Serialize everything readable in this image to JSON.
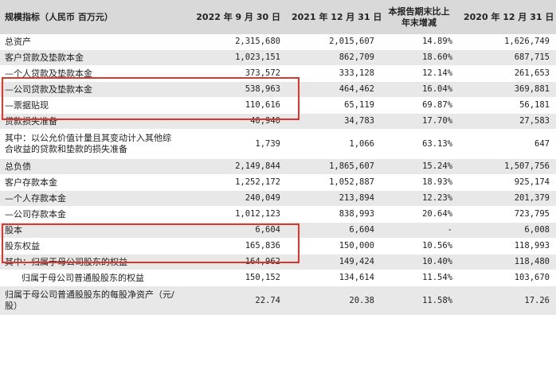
{
  "table": {
    "headers": {
      "indicator": "规模指标（人民币  百万元）",
      "col1": "2022 年 9 月 30 日",
      "col2": "2021 年 12 月 31 日",
      "col3": "本报告期末比上年末增减",
      "col4": "2020 年 12 月 31 日"
    },
    "rows": [
      {
        "label": "总资产",
        "v1": "2,315,680",
        "v2": "2,015,607",
        "v3": "14.89%",
        "v4": "1,626,749"
      },
      {
        "label": "客户贷款及垫款本金",
        "v1": "1,023,151",
        "v2": "862,709",
        "v3": "18.60%",
        "v4": "687,715"
      },
      {
        "label": "—个人贷款及垫款本金",
        "v1": "373,572",
        "v2": "333,128",
        "v3": "12.14%",
        "v4": "261,653"
      },
      {
        "label": "—公司贷款及垫款本金",
        "v1": "538,963",
        "v2": "464,462",
        "v3": "16.04%",
        "v4": "369,881"
      },
      {
        "label": "—票据贴现",
        "v1": "110,616",
        "v2": "65,119",
        "v3": "69.87%",
        "v4": "56,181"
      },
      {
        "label": "贷款损失准备",
        "v1": "40,940",
        "v2": "34,783",
        "v3": "17.70%",
        "v4": "27,583"
      },
      {
        "label": "其中：以公允价值计量且其变动计入其他综合收益的贷款和垫款的损失准备",
        "v1": "1,739",
        "v2": "1,066",
        "v3": "63.13%",
        "v4": "647"
      },
      {
        "label": "总负债",
        "v1": "2,149,844",
        "v2": "1,865,607",
        "v3": "15.24%",
        "v4": "1,507,756"
      },
      {
        "label": "客户存款本金",
        "v1": "1,252,172",
        "v2": "1,052,887",
        "v3": "18.93%",
        "v4": "925,174"
      },
      {
        "label": "—个人存款本金",
        "v1": "240,049",
        "v2": "213,894",
        "v3": "12.23%",
        "v4": "201,379"
      },
      {
        "label": "—公司存款本金",
        "v1": "1,012,123",
        "v2": "838,993",
        "v3": "20.64%",
        "v4": "723,795"
      },
      {
        "label": "股本",
        "v1": "6,604",
        "v2": "6,604",
        "v3": "-",
        "v4": "6,008"
      },
      {
        "label": "股东权益",
        "v1": "165,836",
        "v2": "150,000",
        "v3": "10.56%",
        "v4": "118,993"
      },
      {
        "label": "其中：归属于母公司股东的权益",
        "v1": "164,962",
        "v2": "149,424",
        "v3": "10.40%",
        "v4": "118,480"
      },
      {
        "label": "      归属于母公司普通股股东的权益",
        "v1": "150,152",
        "v2": "134,614",
        "v3": "11.54%",
        "v4": "103,670"
      },
      {
        "label": "归属于母公司普通股股东的每股净资产（元/股）",
        "v1": "22.74",
        "v2": "20.38",
        "v3": "11.58%",
        "v4": "17.26"
      }
    ]
  },
  "colors": {
    "header_bg": "#d9d9d9",
    "row_shade": "#e8e8e8",
    "highlight_border": "#e0352b"
  }
}
